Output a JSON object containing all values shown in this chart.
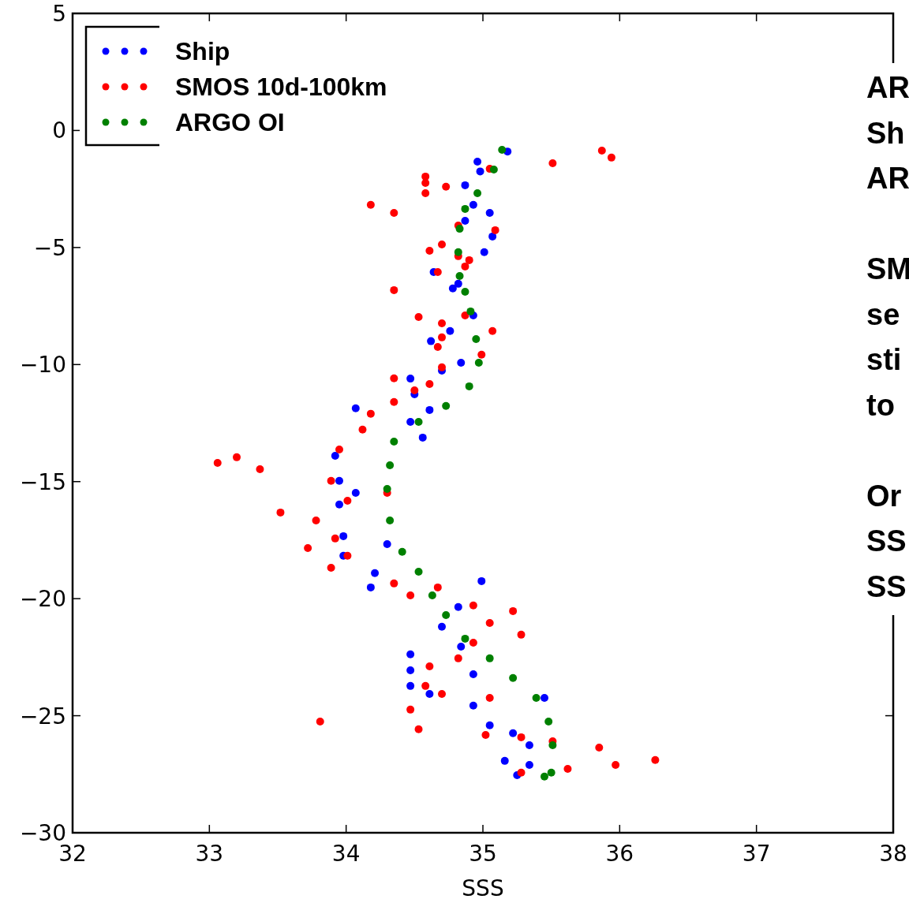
{
  "chart_data": {
    "type": "scatter",
    "xlabel": "SSS",
    "xlim": [
      32,
      38
    ],
    "xticks": [
      32,
      33,
      34,
      35,
      36,
      37,
      38
    ],
    "ylim": [
      -30,
      5
    ],
    "yticks": [
      {
        "value": -30,
        "label": "−30"
      },
      {
        "value": -25,
        "label": "−25"
      },
      {
        "value": -20,
        "label": "−20"
      },
      {
        "value": -15,
        "label": "−15"
      },
      {
        "value": -10,
        "label": "−10"
      },
      {
        "value": -5,
        "label": "−5"
      },
      0,
      5
    ],
    "grid": false,
    "legend": "top left",
    "marker": "circle",
    "annotations": [
      "AR\nSh\nAR",
      "SM\nse\nsti\nto",
      "Or\nSS\nSS"
    ],
    "series": [
      {
        "name": "Ship",
        "color": "#0000ff",
        "x": [
          35.18,
          34.96,
          34.98,
          34.87,
          34.93,
          35.05,
          34.87,
          35.07,
          35.01,
          34.64,
          34.82,
          34.78,
          34.93,
          34.76,
          34.62,
          34.84,
          34.7,
          34.47,
          34.5,
          34.07,
          34.61,
          34.47,
          34.56,
          33.92,
          33.95,
          34.07,
          33.95,
          33.98,
          34.3,
          33.98,
          34.21,
          34.99,
          34.18,
          34.82,
          34.7,
          34.84,
          34.47,
          34.47,
          34.93,
          34.47,
          34.61,
          35.45,
          34.93,
          35.05,
          35.22,
          35.34,
          35.16,
          35.34,
          35.25
        ],
        "values": [
          -0.9,
          -1.33,
          -1.75,
          -2.34,
          -3.18,
          -3.52,
          -3.86,
          -4.53,
          -5.2,
          -6.05,
          -6.55,
          -6.75,
          -7.9,
          -8.57,
          -9.0,
          -9.92,
          -10.26,
          -10.6,
          -11.27,
          -11.87,
          -11.94,
          -12.45,
          -13.12,
          -13.9,
          -14.97,
          -15.48,
          -15.98,
          -17.33,
          -17.67,
          -18.17,
          -18.91,
          -19.25,
          -19.52,
          -20.36,
          -21.2,
          -22.05,
          -22.38,
          -23.06,
          -23.23,
          -23.73,
          -24.07,
          -24.24,
          -24.57,
          -25.41,
          -25.75,
          -26.26,
          -26.93,
          -27.1,
          -27.54
        ]
      },
      {
        "name": "SMOS 10d-100km",
        "color": "#ff0000",
        "x": [
          35.87,
          35.94,
          35.51,
          35.05,
          34.58,
          34.58,
          34.73,
          34.58,
          34.18,
          34.35,
          34.82,
          35.09,
          34.7,
          34.61,
          34.82,
          34.9,
          34.87,
          34.67,
          34.35,
          34.53,
          34.87,
          34.7,
          35.07,
          34.7,
          34.67,
          34.99,
          34.7,
          34.35,
          34.61,
          34.5,
          34.35,
          34.18,
          34.12,
          33.95,
          33.2,
          33.06,
          33.37,
          33.89,
          34.3,
          34.01,
          33.52,
          33.78,
          33.92,
          33.72,
          34.01,
          33.89,
          34.35,
          34.67,
          34.47,
          34.93,
          35.22,
          35.05,
          35.28,
          34.93,
          34.82,
          34.61,
          34.58,
          34.7,
          35.05,
          34.47,
          33.81,
          34.53,
          35.02,
          35.28,
          35.51,
          35.85,
          36.26,
          35.97,
          35.62,
          35.28
        ],
        "values": [
          -0.86,
          -1.16,
          -1.4,
          -1.64,
          -1.97,
          -2.24,
          -2.4,
          -2.68,
          -3.18,
          -3.52,
          -4.06,
          -4.26,
          -4.87,
          -5.14,
          -5.37,
          -5.54,
          -5.81,
          -6.05,
          -6.82,
          -7.97,
          -7.9,
          -8.24,
          -8.57,
          -8.84,
          -9.25,
          -9.58,
          -10.12,
          -10.59,
          -10.83,
          -11.1,
          -11.6,
          -12.1,
          -12.78,
          -13.63,
          -13.96,
          -14.2,
          -14.47,
          -14.97,
          -15.48,
          -15.82,
          -16.32,
          -16.66,
          -17.43,
          -17.84,
          -18.17,
          -18.68,
          -19.35,
          -19.52,
          -19.86,
          -20.29,
          -20.53,
          -21.04,
          -21.54,
          -21.88,
          -22.55,
          -22.89,
          -23.73,
          -24.07,
          -24.24,
          -24.74,
          -25.25,
          -25.58,
          -25.82,
          -25.92,
          -26.09,
          -26.36,
          -26.89,
          -27.1,
          -27.27,
          -27.43
        ]
      },
      {
        "name": "ARGO OI",
        "color": "#008000",
        "x": [
          35.14,
          35.08,
          34.96,
          34.87,
          34.83,
          34.82,
          34.83,
          34.87,
          34.91,
          34.95,
          34.97,
          34.9,
          34.73,
          34.53,
          34.35,
          34.32,
          34.3,
          34.32,
          34.41,
          34.53,
          34.63,
          34.73,
          34.87,
          35.05,
          35.22,
          35.39,
          35.48,
          35.51,
          35.5,
          35.45
        ],
        "values": [
          -0.83,
          -1.67,
          -2.68,
          -3.35,
          -4.2,
          -5.2,
          -6.22,
          -6.89,
          -7.73,
          -8.91,
          -9.92,
          -10.93,
          -11.77,
          -12.45,
          -13.29,
          -14.3,
          -15.31,
          -16.66,
          -18.0,
          -18.85,
          -19.86,
          -20.7,
          -21.71,
          -22.55,
          -23.39,
          -24.24,
          -25.25,
          -26.26,
          -27.43,
          -27.6
        ]
      }
    ]
  }
}
